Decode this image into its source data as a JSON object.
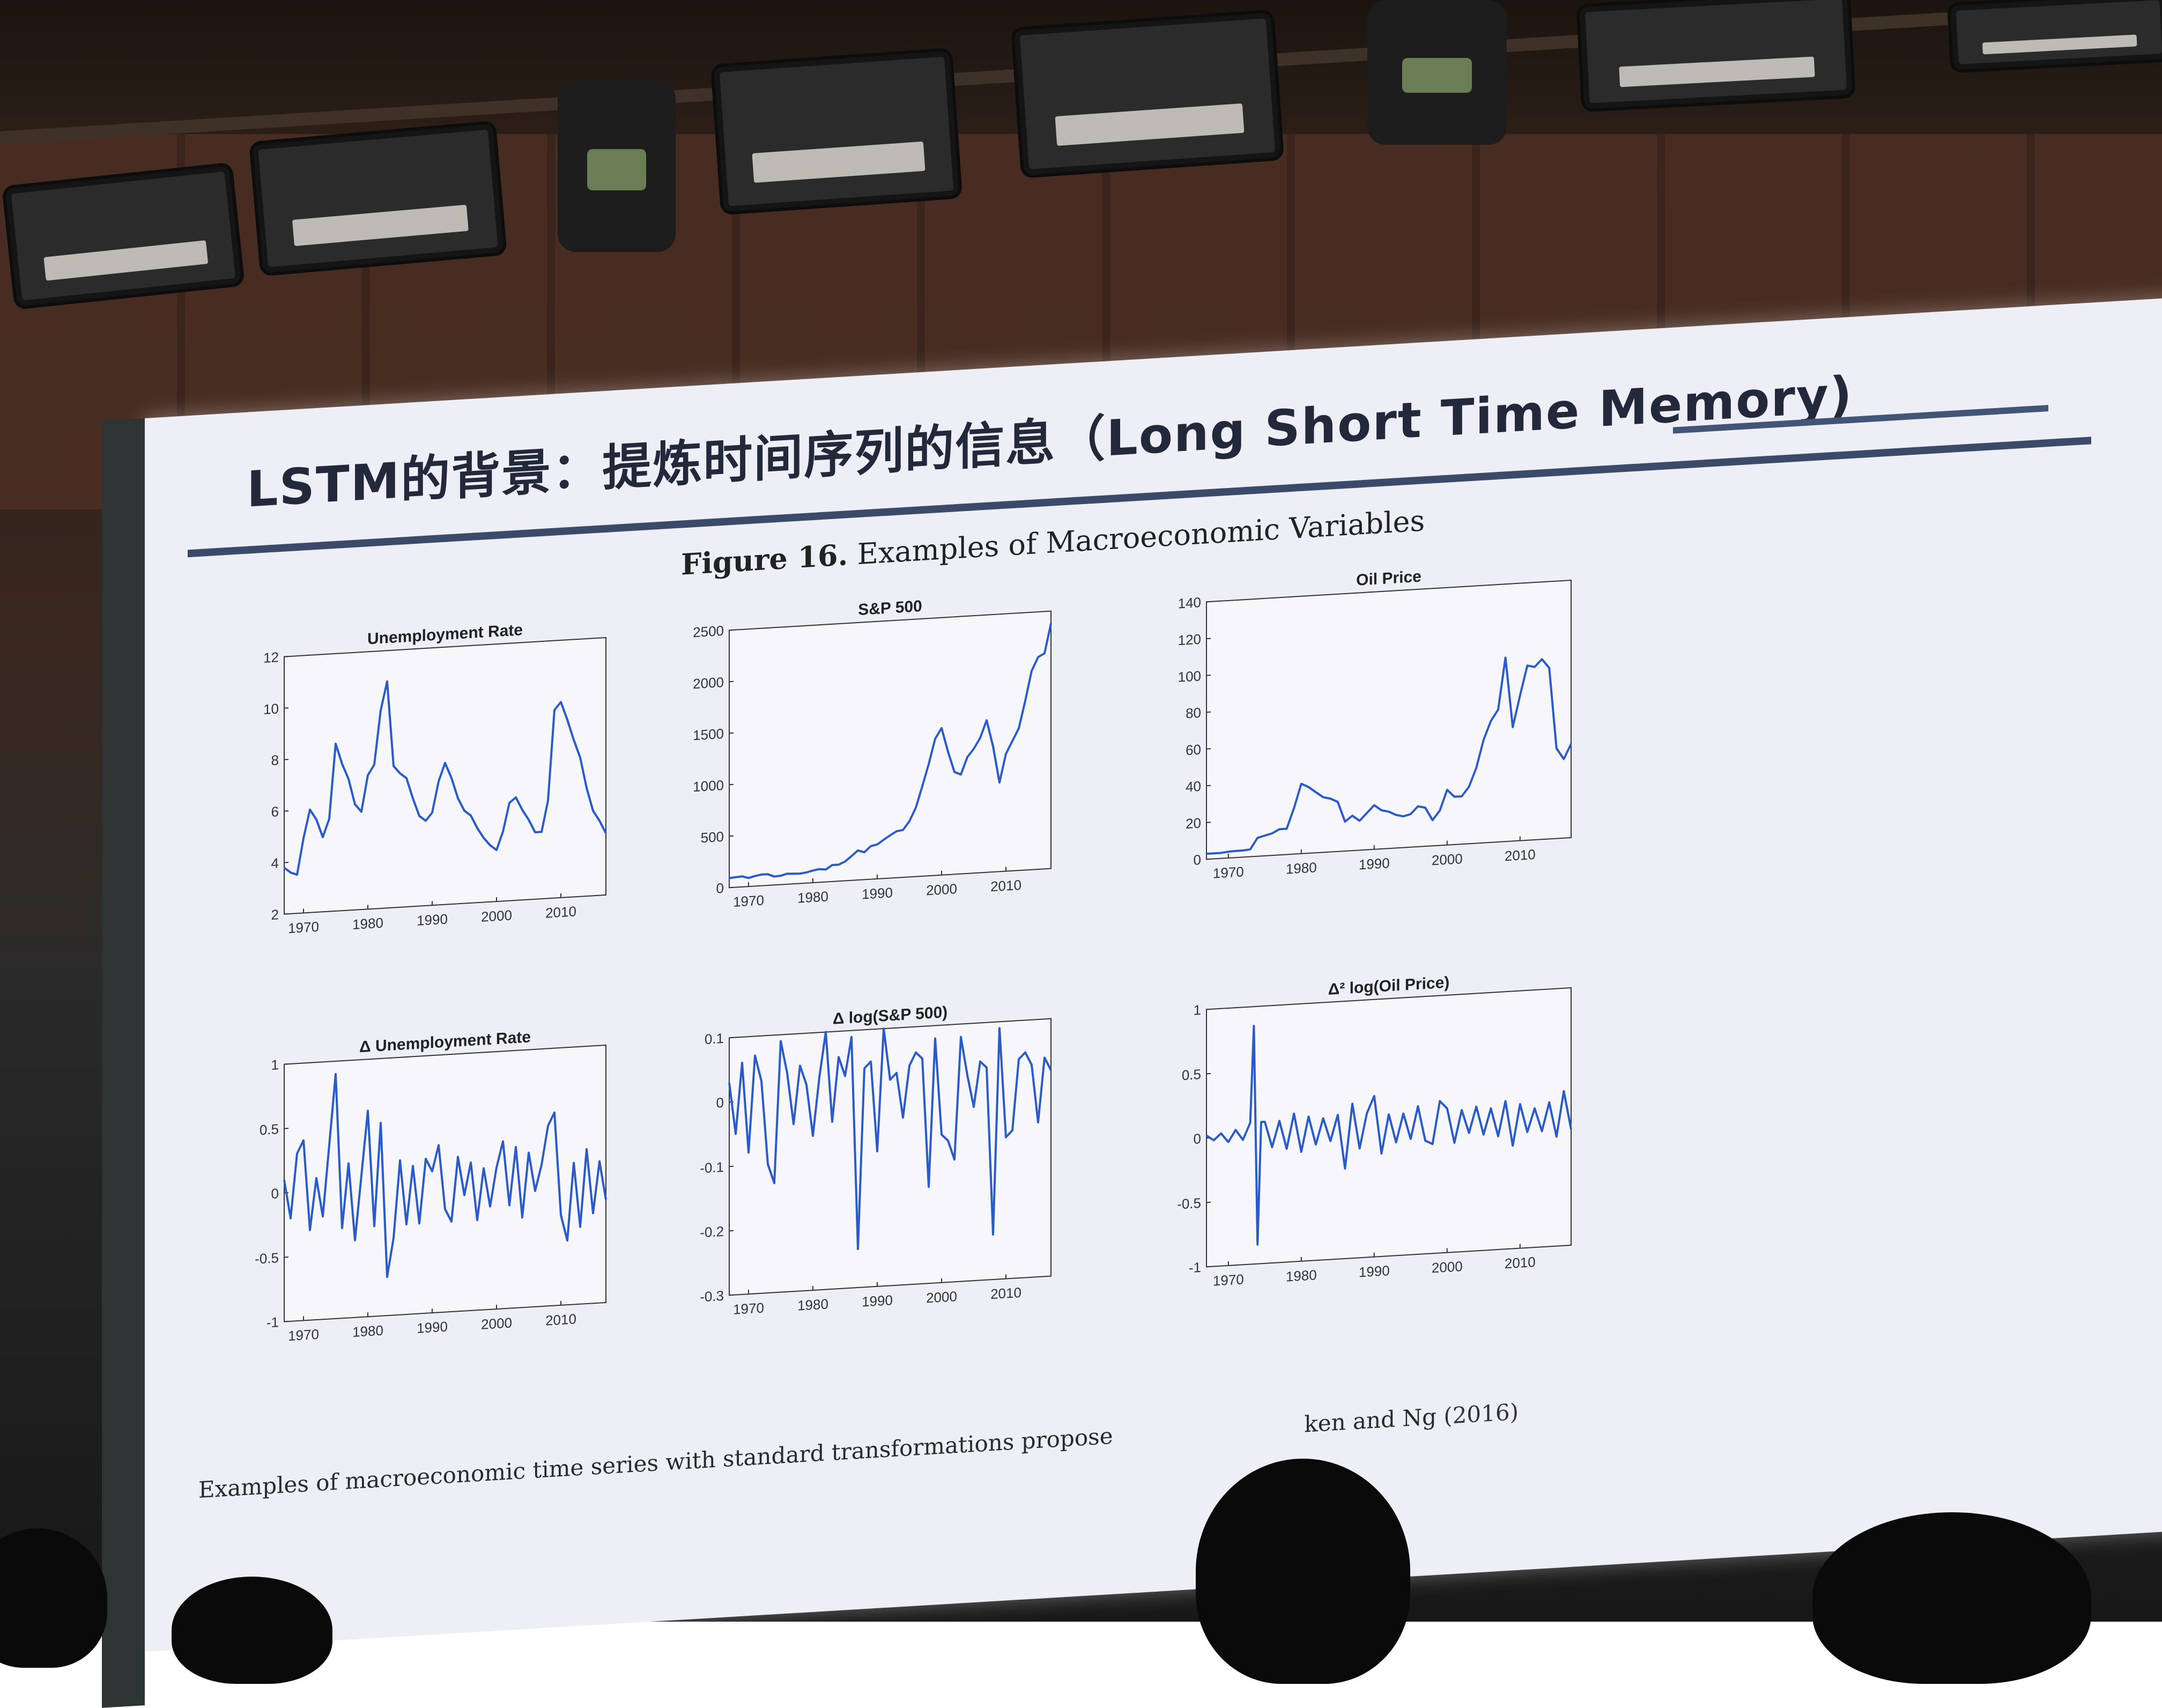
{
  "slide": {
    "title": "LSTM的背景：提炼时间序列的信息（Long Short Time Memory)",
    "figure_title_prefix": "Figure 16.",
    "figure_title_text": "Examples of Macroeconomic Variables",
    "caption_text": "Examples of macroeconomic time series with standard transformations propose",
    "caption_tail": "ken and Ng",
    "caption_year": "(2016)"
  },
  "colors": {
    "series": "#2b5bc9",
    "axis": "#333333",
    "slide_bg": "#eeeef7",
    "title": "#23283b"
  },
  "chart_data": [
    {
      "id": "unemp",
      "type": "line",
      "title": "Unemployment Rate",
      "xlim": [
        1967,
        2017
      ],
      "ylim": [
        2,
        12
      ],
      "xticks": [
        "1970",
        "1980",
        "1990",
        "2000",
        "2010"
      ],
      "xtick_values": [
        1970,
        1980,
        1990,
        2000,
        2010
      ],
      "yticks": [
        "2",
        "4",
        "6",
        "8",
        "10",
        "12"
      ],
      "ytick_values": [
        2,
        4,
        6,
        8,
        10,
        12
      ],
      "x": [
        1967,
        1968,
        1969,
        1970,
        1971,
        1972,
        1973,
        1974,
        1975,
        1976,
        1977,
        1978,
        1979,
        1980,
        1981,
        1982,
        1983,
        1984,
        1985,
        1986,
        1987,
        1988,
        1989,
        1990,
        1991,
        1992,
        1993,
        1994,
        1995,
        1996,
        1997,
        1998,
        1999,
        2000,
        2001,
        2002,
        2003,
        2004,
        2005,
        2006,
        2007,
        2008,
        2009,
        2010,
        2011,
        2012,
        2013,
        2014,
        2015,
        2016,
        2017
      ],
      "y": [
        3.8,
        3.6,
        3.5,
        4.9,
        6.0,
        5.6,
        4.9,
        5.6,
        8.5,
        7.7,
        7.1,
        6.1,
        5.8,
        7.2,
        7.6,
        9.7,
        10.8,
        7.5,
        7.2,
        7.0,
        6.2,
        5.5,
        5.3,
        5.6,
        6.8,
        7.5,
        6.9,
        6.1,
        5.6,
        5.4,
        4.9,
        4.5,
        4.2,
        4.0,
        4.7,
        5.8,
        6.0,
        5.5,
        5.1,
        4.6,
        4.6,
        5.8,
        9.3,
        9.6,
        8.9,
        8.1,
        7.4,
        6.2,
        5.3,
        4.9,
        4.4
      ]
    },
    {
      "id": "sp500",
      "type": "line",
      "title": "S&P 500",
      "xlim": [
        1967,
        2017
      ],
      "ylim": [
        0,
        2500
      ],
      "xticks": [
        "1970",
        "1980",
        "1990",
        "2000",
        "2010"
      ],
      "xtick_values": [
        1970,
        1980,
        1990,
        2000,
        2010
      ],
      "yticks": [
        "0",
        "500",
        "1000",
        "1500",
        "2000",
        "2500"
      ],
      "ytick_values": [
        0,
        500,
        1000,
        1500,
        2000,
        2500
      ],
      "x": [
        1967,
        1968,
        1969,
        1970,
        1971,
        1972,
        1973,
        1974,
        1975,
        1976,
        1977,
        1978,
        1979,
        1980,
        1981,
        1982,
        1983,
        1984,
        1985,
        1986,
        1987,
        1988,
        1989,
        1990,
        1991,
        1992,
        1993,
        1994,
        1995,
        1996,
        1997,
        1998,
        1999,
        2000,
        2001,
        2002,
        2003,
        2004,
        2005,
        2006,
        2007,
        2008,
        2009,
        2010,
        2011,
        2012,
        2013,
        2014,
        2015,
        2016,
        2017
      ],
      "y": [
        92,
        98,
        102,
        83,
        98,
        109,
        108,
        82,
        86,
        102,
        98,
        96,
        103,
        118,
        128,
        120,
        160,
        160,
        187,
        236,
        287,
        266,
        322,
        334,
        376,
        415,
        451,
        460,
        541,
        670,
        873,
        1085,
        1327,
        1427,
        1194,
        993,
        965,
        1130,
        1207,
        1310,
        1477,
        1220,
        865,
        1140,
        1260,
        1380,
        1643,
        1931,
        2061,
        2094,
        2380
      ]
    },
    {
      "id": "oil",
      "type": "line",
      "title": "Oil Price",
      "xlim": [
        1967,
        2017
      ],
      "ylim": [
        0,
        140
      ],
      "xticks": [
        "1970",
        "1980",
        "1990",
        "2000",
        "2010"
      ],
      "xtick_values": [
        1970,
        1980,
        1990,
        2000,
        2010
      ],
      "yticks": [
        "0",
        "20",
        "40",
        "60",
        "80",
        "100",
        "120",
        "140"
      ],
      "ytick_values": [
        0,
        20,
        40,
        60,
        80,
        100,
        120,
        140
      ],
      "x": [
        1967,
        1968,
        1969,
        1970,
        1971,
        1972,
        1973,
        1974,
        1975,
        1976,
        1977,
        1978,
        1979,
        1980,
        1981,
        1982,
        1983,
        1984,
        1985,
        1986,
        1987,
        1988,
        1989,
        1990,
        1991,
        1992,
        1993,
        1994,
        1995,
        1996,
        1997,
        1998,
        1999,
        2000,
        2001,
        2002,
        2003,
        2004,
        2005,
        2006,
        2007,
        2008,
        2009,
        2010,
        2011,
        2012,
        2013,
        2014,
        2015,
        2016,
        2017
      ],
      "y": [
        3,
        3,
        3,
        3.4,
        3.6,
        3.6,
        4,
        10,
        11,
        12,
        14,
        14,
        25,
        38,
        36,
        33,
        30,
        29,
        27,
        16,
        19,
        16,
        20,
        24,
        21,
        20,
        18,
        17,
        18,
        22,
        21,
        14,
        19,
        30,
        26,
        26,
        31,
        41,
        56,
        66,
        72,
        100,
        62,
        79,
        95,
        94,
        98,
        93,
        49,
        43,
        51
      ]
    },
    {
      "id": "d_unemp",
      "type": "line",
      "title": "Δ Unemployment Rate",
      "xlim": [
        1967,
        2017
      ],
      "ylim": [
        -1,
        1
      ],
      "xticks": [
        "1970",
        "1980",
        "1990",
        "2000",
        "2010"
      ],
      "xtick_values": [
        1970,
        1980,
        1990,
        2000,
        2010
      ],
      "yticks": [
        "-1",
        "-0.5",
        "0",
        "0.5",
        "1"
      ],
      "ytick_values": [
        -1,
        -0.5,
        0,
        0.5,
        1
      ],
      "x": [
        1967,
        1968,
        1969,
        1970,
        1971,
        1972,
        1973,
        1974,
        1975,
        1976,
        1977,
        1978,
        1979,
        1980,
        1981,
        1982,
        1983,
        1984,
        1985,
        1986,
        1987,
        1988,
        1989,
        1990,
        1991,
        1992,
        1993,
        1994,
        1995,
        1996,
        1997,
        1998,
        1999,
        2000,
        2001,
        2002,
        2003,
        2004,
        2005,
        2006,
        2007,
        2008,
        2009,
        2010,
        2011,
        2012,
        2013,
        2014,
        2015,
        2016,
        2017
      ],
      "y": [
        0.1,
        -0.2,
        0.3,
        0.4,
        -0.3,
        0.1,
        -0.2,
        0.35,
        0.9,
        -0.3,
        0.2,
        -0.4,
        0.1,
        0.6,
        -0.3,
        0.5,
        -0.7,
        -0.4,
        0.2,
        -0.3,
        0.15,
        -0.3,
        0.2,
        0.1,
        0.3,
        -0.2,
        -0.3,
        0.2,
        -0.1,
        0.15,
        -0.3,
        0.1,
        -0.2,
        0.1,
        0.3,
        -0.2,
        0.25,
        -0.3,
        0.2,
        -0.1,
        0.1,
        0.4,
        0.5,
        -0.3,
        -0.5,
        0.1,
        -0.4,
        0.2,
        -0.3,
        0.1,
        -0.2
      ]
    },
    {
      "id": "d_sp500",
      "type": "line",
      "title": "Δ log(S&P 500)",
      "xlim": [
        1967,
        2017
      ],
      "ylim": [
        -0.3,
        0.1
      ],
      "xticks": [
        "1970",
        "1980",
        "1990",
        "2000",
        "2010"
      ],
      "xtick_values": [
        1970,
        1980,
        1990,
        2000,
        2010
      ],
      "yticks": [
        "-0.3",
        "-0.2",
        "-0.1",
        "0",
        "0.1"
      ],
      "ytick_values": [
        -0.3,
        -0.2,
        -0.1,
        0,
        0.1
      ],
      "x": [
        1967,
        1968,
        1969,
        1970,
        1971,
        1972,
        1973,
        1974,
        1975,
        1976,
        1977,
        1978,
        1979,
        1980,
        1981,
        1982,
        1983,
        1984,
        1985,
        1986,
        1987,
        1988,
        1989,
        1990,
        1991,
        1992,
        1993,
        1994,
        1995,
        1996,
        1997,
        1998,
        1999,
        2000,
        2001,
        2002,
        2003,
        2004,
        2005,
        2006,
        2007,
        2008,
        2009,
        2010,
        2011,
        2012,
        2013,
        2014,
        2015,
        2016,
        2017
      ],
      "y": [
        0.03,
        -0.05,
        0.06,
        -0.08,
        0.07,
        0.03,
        -0.1,
        -0.13,
        0.09,
        0.04,
        -0.04,
        0.05,
        0.02,
        -0.06,
        0.03,
        0.1,
        -0.04,
        0.06,
        0.03,
        0.09,
        -0.24,
        0.04,
        0.05,
        -0.09,
        0.1,
        0.02,
        0.03,
        -0.04,
        0.04,
        0.06,
        0.05,
        -0.15,
        0.08,
        -0.07,
        -0.08,
        -0.11,
        0.08,
        0.02,
        -0.03,
        0.04,
        0.03,
        -0.23,
        0.09,
        -0.08,
        -0.07,
        0.04,
        0.05,
        0.03,
        -0.06,
        0.04,
        0.02
      ]
    },
    {
      "id": "d2_oil",
      "type": "line",
      "title": "Δ² log(Oil Price)",
      "xlim": [
        1967,
        2017
      ],
      "ylim": [
        -1,
        1
      ],
      "xticks": [
        "1970",
        "1980",
        "1990",
        "2000",
        "2010"
      ],
      "xtick_values": [
        1970,
        1980,
        1990,
        2000,
        2010
      ],
      "yticks": [
        "-1",
        "-0.5",
        "0",
        "0.5",
        "1"
      ],
      "ytick_values": [
        -1,
        -0.5,
        0,
        0.5,
        1
      ],
      "x": [
        1967,
        1968,
        1969,
        1970,
        1971,
        1972,
        1973,
        1973.5,
        1974,
        1974.5,
        1975,
        1976,
        1977,
        1978,
        1979,
        1980,
        1981,
        1982,
        1983,
        1984,
        1985,
        1986,
        1987,
        1988,
        1989,
        1990,
        1991,
        1992,
        1993,
        1994,
        1995,
        1996,
        1997,
        1998,
        1999,
        2000,
        2001,
        2002,
        2003,
        2004,
        2005,
        2006,
        2007,
        2008,
        2009,
        2010,
        2011,
        2012,
        2013,
        2014,
        2015,
        2016,
        2017
      ],
      "y": [
        0.02,
        -0.02,
        0.03,
        -0.04,
        0.05,
        -0.03,
        0.1,
        0.85,
        -0.85,
        0.1,
        0.1,
        -0.1,
        0.1,
        -0.12,
        0.15,
        -0.15,
        0.12,
        -0.1,
        0.1,
        -0.08,
        0.12,
        -0.3,
        0.2,
        -0.15,
        0.12,
        0.25,
        -0.2,
        0.1,
        -0.12,
        0.1,
        -0.1,
        0.15,
        -0.12,
        -0.15,
        0.18,
        0.12,
        -0.15,
        0.1,
        -0.08,
        0.12,
        -0.1,
        0.1,
        -0.12,
        0.15,
        -0.2,
        0.12,
        -0.1,
        0.08,
        -0.1,
        0.12,
        -0.15,
        0.2,
        -0.1
      ]
    }
  ]
}
